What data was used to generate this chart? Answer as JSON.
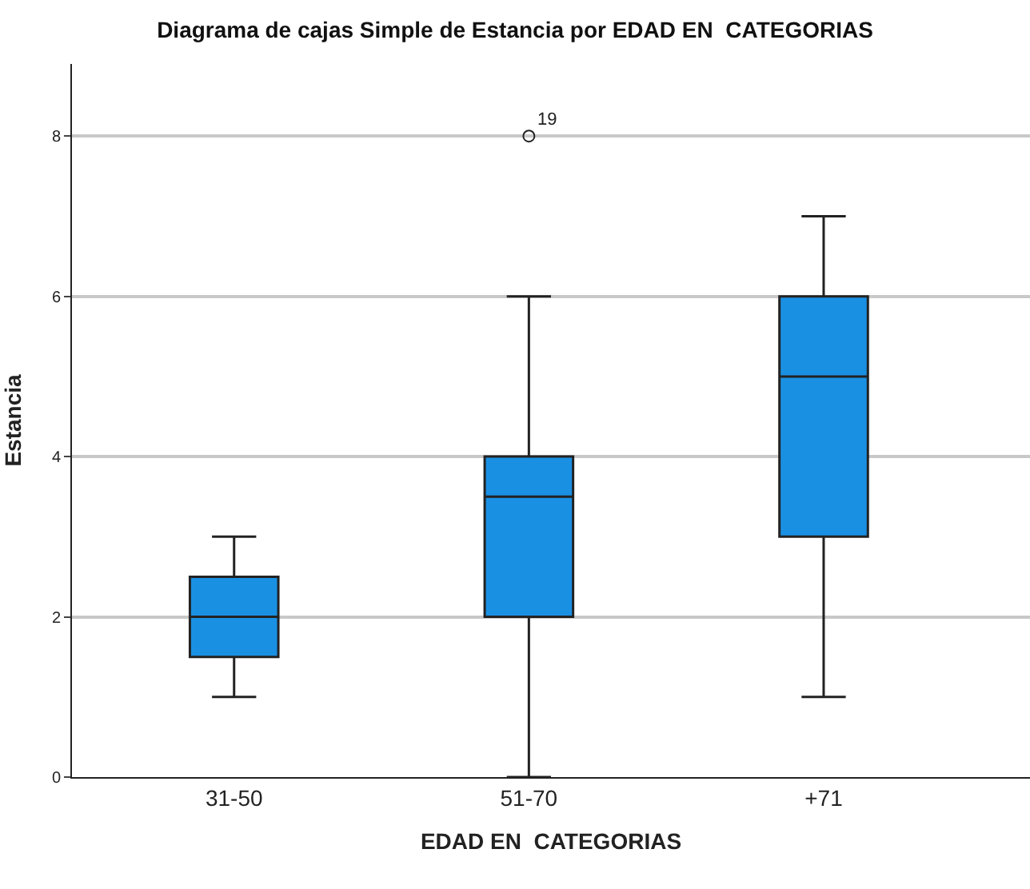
{
  "chart_data": {
    "type": "box",
    "title": "Diagrama de cajas Simple de Estancia por EDAD EN  CATEGORIAS",
    "xlabel": "EDAD EN  CATEGORIAS",
    "ylabel": "Estancia",
    "categories": [
      "31-50",
      "51-70",
      "+71"
    ],
    "color": "#1a90e3",
    "boxes": [
      {
        "low": 1,
        "q1": 1.5,
        "median": 2,
        "q3": 2.5,
        "high": 3
      },
      {
        "low": 0,
        "q1": 2,
        "median": 3.5,
        "q3": 4,
        "high": 6,
        "outliers": [
          8
        ]
      },
      {
        "low": 1,
        "q1": 3,
        "median": 5,
        "q3": 6,
        "high": 7
      }
    ],
    "annotations": [
      "19"
    ],
    "ylim": [
      0,
      8.9
    ],
    "yticks": [
      0,
      2,
      4,
      6,
      8
    ],
    "grid": "y",
    "marker": "circle"
  }
}
